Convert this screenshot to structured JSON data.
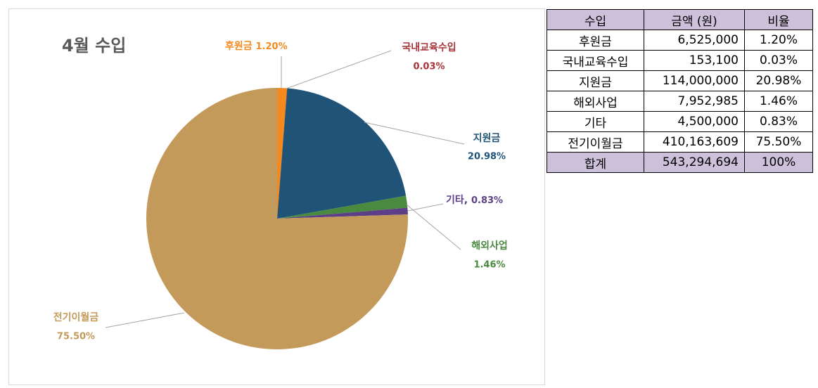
{
  "chart_data": {
    "type": "pie",
    "title": "4월 수입",
    "categories": [
      "후원금",
      "국내교육수입",
      "지원금",
      "해외사업",
      "기타",
      "전기이월금"
    ],
    "values": [
      1.2,
      0.03,
      20.98,
      1.46,
      0.83,
      75.5
    ],
    "value_labels": [
      "1.20%",
      "0.03%",
      "20.98%",
      "1.46%",
      "0.83%",
      "75.50%"
    ],
    "colors": [
      "#f28a1e",
      "#a83238",
      "#1f5478",
      "#4a8a3e",
      "#5c3f87",
      "#c49a5a"
    ]
  },
  "table": {
    "header": [
      "수입",
      "금액 (원)",
      "비율"
    ],
    "rows": [
      [
        "후원금",
        "6,525,000",
        "1.20%"
      ],
      [
        "국내교육수입",
        "153,100",
        "0.03%"
      ],
      [
        "지원금",
        "114,000,000",
        "20.98%"
      ],
      [
        "해외사업",
        "7,952,985",
        "1.46%"
      ],
      [
        "기타",
        "4,500,000",
        "0.83%"
      ],
      [
        "전기이월금",
        "410,163,609",
        "75.50%"
      ]
    ],
    "total": [
      "합계",
      "543,294,694",
      "100%"
    ]
  }
}
